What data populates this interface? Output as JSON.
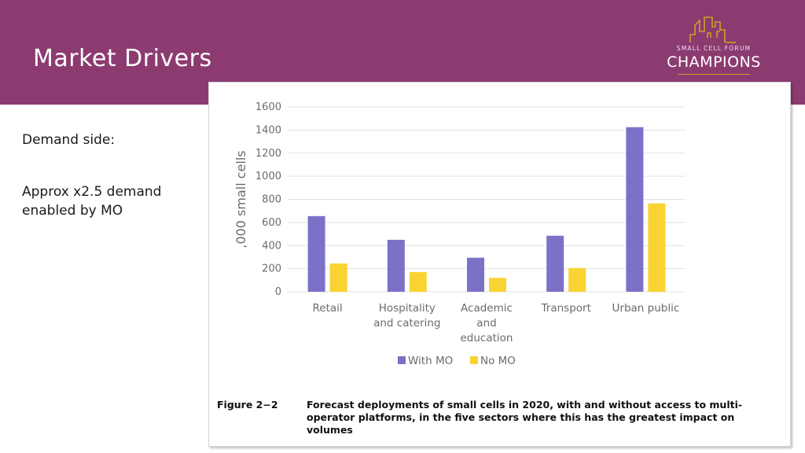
{
  "slide": {
    "title": "Market Drivers",
    "demand_label": "Demand side:",
    "approx_text": "Approx x2.5 demand enabled by MO"
  },
  "logo": {
    "top_text": "SMALL CELL FORUM",
    "main_text": "CHAMPIONS"
  },
  "colors": {
    "header": "#8c3b71",
    "with_mo": "#7b72c8",
    "no_mo": "#f9d331",
    "logo_gold": "#c9a227"
  },
  "figure": {
    "label": "Figure 2−2",
    "caption": "Forecast deployments of small cells in 2020, with and without access to multi-operator platforms, in the five sectors where this has the greatest impact on volumes"
  },
  "chart_data": {
    "type": "bar",
    "categories": [
      [
        "Retail"
      ],
      [
        "Hospitality",
        "and catering"
      ],
      [
        "Academic",
        "and",
        "education"
      ],
      [
        "Transport"
      ],
      [
        "Urban public"
      ]
    ],
    "series": [
      {
        "name": "With MO",
        "values": [
          655,
          450,
          295,
          485,
          1425
        ]
      },
      {
        "name": "No MO",
        "values": [
          245,
          170,
          120,
          205,
          765
        ]
      }
    ],
    "title": "",
    "xlabel": "",
    "ylabel": ",000 small cells",
    "ylim": [
      0,
      1600
    ],
    "yticks": [
      0,
      200,
      400,
      600,
      800,
      1000,
      1200,
      1400,
      1600
    ],
    "grid": true,
    "legend_position": "bottom"
  }
}
